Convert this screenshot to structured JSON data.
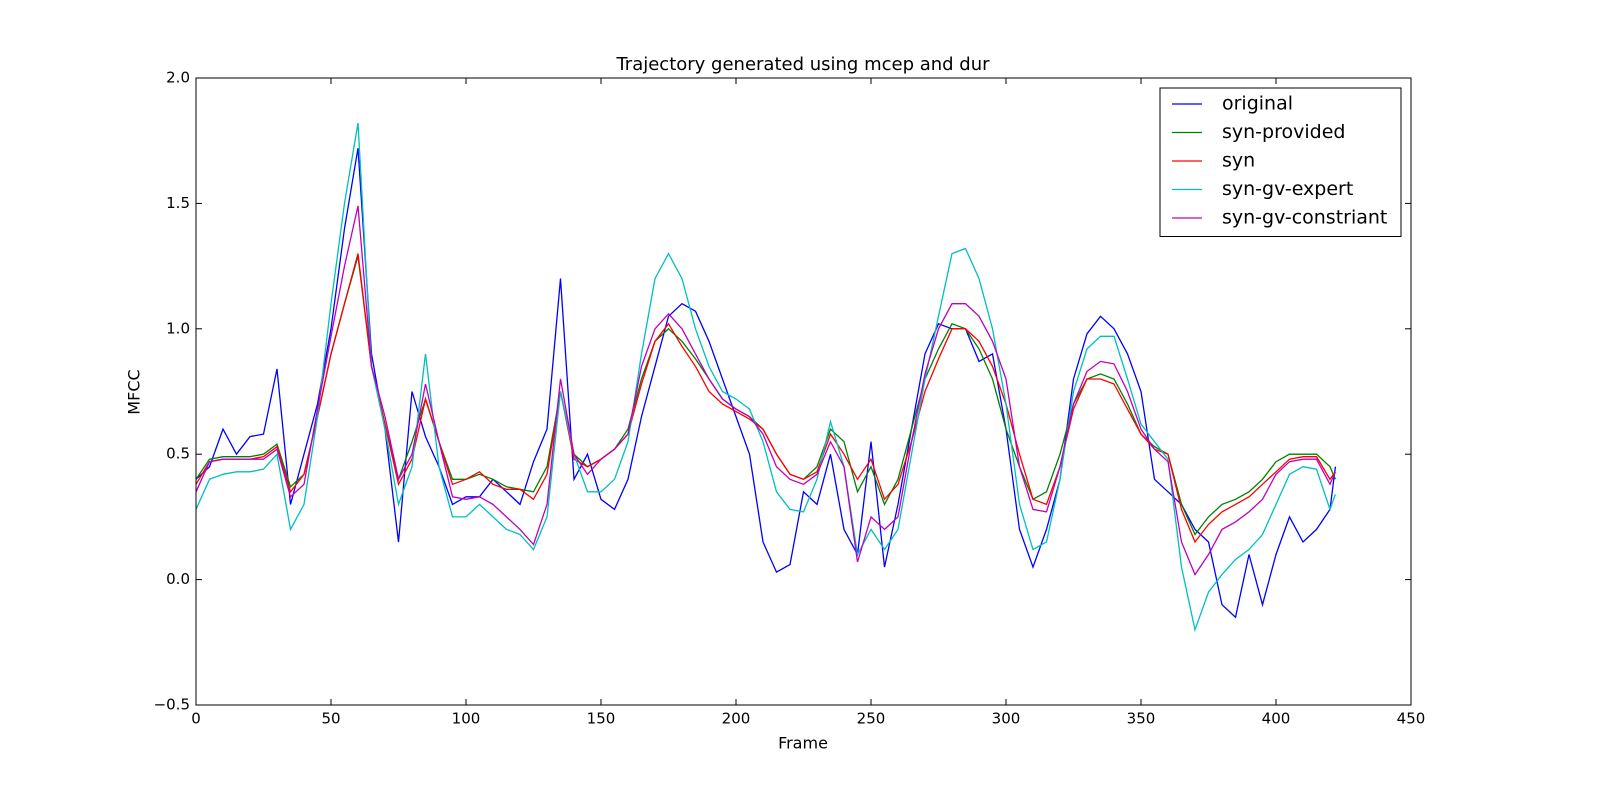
{
  "chart_data": {
    "type": "line",
    "title": "Trajectory generated using mcep and dur",
    "x_label": "Frame",
    "y_label": "MFCC",
    "x": [
      0,
      5,
      10,
      15,
      20,
      25,
      30,
      35,
      40,
      45,
      50,
      55,
      60,
      65,
      70,
      75,
      80,
      85,
      90,
      95,
      100,
      105,
      110,
      115,
      120,
      125,
      130,
      135,
      140,
      145,
      150,
      155,
      160,
      165,
      170,
      175,
      180,
      185,
      190,
      195,
      200,
      205,
      210,
      215,
      220,
      225,
      230,
      235,
      240,
      245,
      250,
      255,
      260,
      265,
      270,
      275,
      280,
      285,
      290,
      295,
      300,
      305,
      310,
      315,
      320,
      325,
      330,
      335,
      340,
      345,
      350,
      355,
      360,
      365,
      370,
      375,
      380,
      385,
      390,
      395,
      400,
      405,
      410,
      415,
      420,
      422
    ],
    "series": [
      {
        "name": "original",
        "color": "#0000ff",
        "values": [
          0.4,
          0.45,
          0.6,
          0.5,
          0.57,
          0.58,
          0.84,
          0.3,
          0.5,
          0.7,
          1.0,
          1.4,
          1.72,
          0.9,
          0.6,
          0.15,
          0.75,
          0.57,
          0.45,
          0.3,
          0.33,
          0.33,
          0.4,
          0.35,
          0.3,
          0.47,
          0.6,
          1.2,
          0.4,
          0.5,
          0.32,
          0.28,
          0.4,
          0.65,
          0.85,
          1.05,
          1.1,
          1.07,
          0.95,
          0.8,
          0.65,
          0.5,
          0.15,
          0.03,
          0.06,
          0.35,
          0.3,
          0.5,
          0.2,
          0.1,
          0.55,
          0.05,
          0.3,
          0.6,
          0.9,
          1.02,
          1.0,
          1.0,
          0.87,
          0.9,
          0.6,
          0.2,
          0.05,
          0.2,
          0.4,
          0.8,
          0.98,
          1.05,
          1.0,
          0.9,
          0.75,
          0.4,
          0.35,
          0.3,
          0.2,
          0.15,
          -0.1,
          -0.15,
          0.1,
          -0.1,
          0.1,
          0.25,
          0.15,
          0.2,
          0.28,
          0.45
        ]
      },
      {
        "name": "syn-provided",
        "color": "#008000",
        "values": [
          0.4,
          0.48,
          0.49,
          0.49,
          0.49,
          0.5,
          0.54,
          0.37,
          0.42,
          0.65,
          0.9,
          1.1,
          1.29,
          0.85,
          0.62,
          0.4,
          0.55,
          0.72,
          0.55,
          0.4,
          0.4,
          0.42,
          0.4,
          0.37,
          0.36,
          0.35,
          0.45,
          0.75,
          0.5,
          0.45,
          0.48,
          0.52,
          0.6,
          0.8,
          0.95,
          1.0,
          0.95,
          0.88,
          0.8,
          0.72,
          0.68,
          0.65,
          0.6,
          0.5,
          0.42,
          0.4,
          0.45,
          0.6,
          0.55,
          0.35,
          0.45,
          0.3,
          0.4,
          0.6,
          0.8,
          0.92,
          1.02,
          1.0,
          0.92,
          0.8,
          0.6,
          0.45,
          0.32,
          0.35,
          0.5,
          0.7,
          0.8,
          0.82,
          0.8,
          0.7,
          0.58,
          0.53,
          0.5,
          0.3,
          0.18,
          0.25,
          0.3,
          0.32,
          0.35,
          0.4,
          0.47,
          0.5,
          0.5,
          0.5,
          0.45,
          0.4
        ]
      },
      {
        "name": "syn",
        "color": "#ff0000",
        "values": [
          0.38,
          0.47,
          0.48,
          0.48,
          0.48,
          0.49,
          0.53,
          0.35,
          0.42,
          0.65,
          0.9,
          1.1,
          1.3,
          0.85,
          0.62,
          0.38,
          0.48,
          0.72,
          0.55,
          0.38,
          0.4,
          0.43,
          0.38,
          0.36,
          0.36,
          0.32,
          0.42,
          0.75,
          0.48,
          0.45,
          0.48,
          0.52,
          0.58,
          0.78,
          0.95,
          1.02,
          0.93,
          0.85,
          0.75,
          0.7,
          0.67,
          0.64,
          0.6,
          0.5,
          0.42,
          0.4,
          0.43,
          0.58,
          0.5,
          0.4,
          0.48,
          0.32,
          0.38,
          0.55,
          0.75,
          0.88,
          1.0,
          1.0,
          0.95,
          0.85,
          0.7,
          0.5,
          0.32,
          0.3,
          0.45,
          0.68,
          0.8,
          0.8,
          0.78,
          0.68,
          0.58,
          0.52,
          0.5,
          0.28,
          0.15,
          0.22,
          0.27,
          0.3,
          0.33,
          0.38,
          0.43,
          0.48,
          0.49,
          0.49,
          0.4,
          0.43
        ]
      },
      {
        "name": "syn-gv-expert",
        "color": "#00bfbf",
        "values": [
          0.28,
          0.4,
          0.42,
          0.43,
          0.43,
          0.44,
          0.5,
          0.2,
          0.3,
          0.65,
          1.1,
          1.5,
          1.82,
          0.85,
          0.6,
          0.3,
          0.45,
          0.9,
          0.45,
          0.25,
          0.25,
          0.3,
          0.25,
          0.2,
          0.18,
          0.12,
          0.25,
          0.75,
          0.5,
          0.35,
          0.35,
          0.4,
          0.55,
          0.9,
          1.2,
          1.3,
          1.2,
          1.0,
          0.85,
          0.75,
          0.72,
          0.68,
          0.55,
          0.35,
          0.28,
          0.27,
          0.4,
          0.63,
          0.45,
          0.1,
          0.2,
          0.12,
          0.2,
          0.5,
          0.8,
          1.05,
          1.3,
          1.32,
          1.2,
          1.0,
          0.7,
          0.3,
          0.12,
          0.15,
          0.4,
          0.75,
          0.92,
          0.97,
          0.97,
          0.8,
          0.62,
          0.55,
          0.48,
          0.05,
          -0.2,
          -0.05,
          0.02,
          0.08,
          0.12,
          0.18,
          0.3,
          0.42,
          0.45,
          0.44,
          0.28,
          0.34
        ]
      },
      {
        "name": "syn-gv-constriant",
        "color": "#bf00bf",
        "values": [
          0.35,
          0.47,
          0.48,
          0.48,
          0.48,
          0.48,
          0.52,
          0.33,
          0.38,
          0.68,
          0.97,
          1.25,
          1.49,
          0.85,
          0.65,
          0.4,
          0.5,
          0.78,
          0.55,
          0.33,
          0.32,
          0.33,
          0.3,
          0.25,
          0.2,
          0.14,
          0.3,
          0.8,
          0.5,
          0.42,
          0.48,
          0.52,
          0.58,
          0.85,
          1.0,
          1.06,
          1.0,
          0.9,
          0.8,
          0.72,
          0.68,
          0.65,
          0.58,
          0.45,
          0.4,
          0.38,
          0.42,
          0.55,
          0.45,
          0.07,
          0.25,
          0.2,
          0.25,
          0.55,
          0.82,
          1.0,
          1.1,
          1.1,
          1.05,
          0.95,
          0.8,
          0.45,
          0.28,
          0.27,
          0.45,
          0.7,
          0.83,
          0.87,
          0.86,
          0.75,
          0.6,
          0.52,
          0.47,
          0.15,
          0.02,
          0.1,
          0.2,
          0.23,
          0.27,
          0.32,
          0.42,
          0.47,
          0.48,
          0.48,
          0.38,
          0.43
        ]
      }
    ],
    "xlim": [
      0,
      450
    ],
    "xticks": [
      0,
      50,
      100,
      150,
      200,
      250,
      300,
      350,
      400,
      450
    ],
    "ylim": [
      -0.5,
      2.0
    ],
    "yticks": [
      {
        "value": -0.5,
        "label": "−0.5"
      },
      {
        "value": 0,
        "label": "0.0"
      },
      0.5,
      {
        "value": 1,
        "label": "1.0"
      },
      1.5,
      {
        "value": 2,
        "label": "2.0"
      }
    ],
    "grid": false,
    "legend": "upper right"
  }
}
